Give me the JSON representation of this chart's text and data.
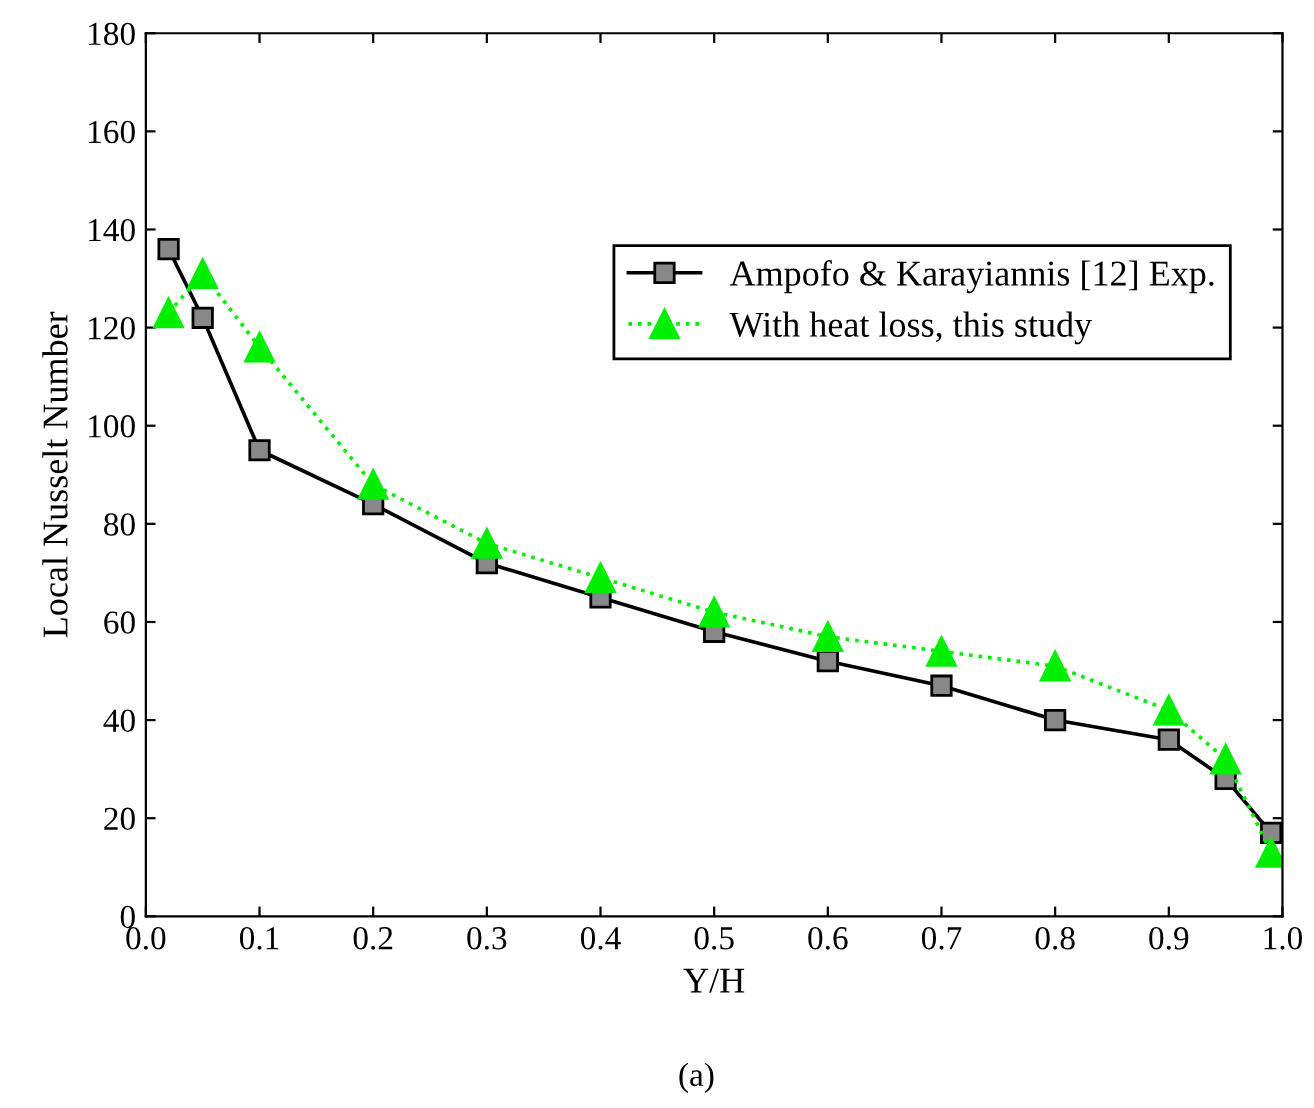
{
  "chart_data": {
    "type": "line",
    "xlabel": "Y/H",
    "ylabel": "Local Nusselt Number",
    "annotations": [
      "(a)"
    ],
    "xlim": [
      0.0,
      1.0
    ],
    "xticks": [
      {
        "value": 0.0,
        "label": "0.0"
      },
      {
        "value": 0.1,
        "label": "0.1"
      },
      {
        "value": 0.2,
        "label": "0.2"
      },
      {
        "value": 0.3,
        "label": "0.3"
      },
      {
        "value": 0.4,
        "label": "0.4"
      },
      {
        "value": 0.5,
        "label": "0.5"
      },
      {
        "value": 0.6,
        "label": "0.6"
      },
      {
        "value": 0.7,
        "label": "0.7"
      },
      {
        "value": 0.8,
        "label": "0.8"
      },
      {
        "value": 0.9,
        "label": "0.9"
      },
      {
        "value": 1.0,
        "label": "1.0"
      }
    ],
    "ylim": [
      0,
      180
    ],
    "yticks": [
      0,
      20,
      40,
      60,
      80,
      100,
      120,
      140,
      160,
      180
    ],
    "grid": false,
    "legend": "top right",
    "series": [
      {
        "name": "Ampofo & Karayiannis [12] Exp.",
        "color": "#000000",
        "marker": "square",
        "line_style": "solid",
        "x": [
          0.02,
          0.05,
          0.1,
          0.2,
          0.3,
          0.4,
          0.5,
          0.6,
          0.7,
          0.8,
          0.9,
          0.95,
          0.99
        ],
        "values": [
          136,
          122,
          95,
          84,
          72,
          65,
          58,
          52,
          47,
          40,
          36,
          28,
          17
        ]
      },
      {
        "name": "With heat loss, this study",
        "color": "#00ee00",
        "marker": "triangle",
        "line_style": "dotted",
        "x": [
          0.02,
          0.05,
          0.1,
          0.2,
          0.3,
          0.4,
          0.5,
          0.6,
          0.7,
          0.8,
          0.9,
          0.95,
          0.99
        ],
        "values": [
          123,
          131,
          116,
          88,
          76,
          69,
          62,
          57,
          54,
          51,
          42,
          32,
          13
        ]
      }
    ]
  }
}
